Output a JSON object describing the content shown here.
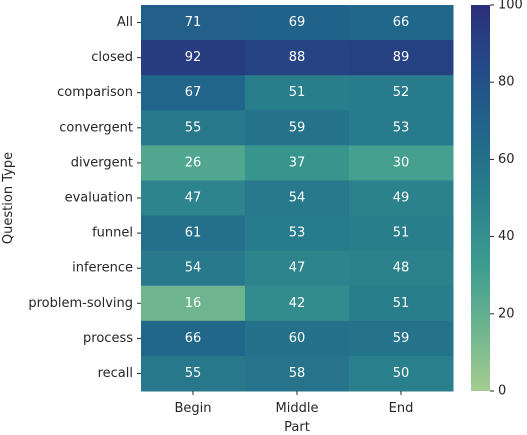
{
  "chart_data": {
    "type": "heatmap",
    "title": "",
    "xlabel": "Part",
    "ylabel": "Question Type",
    "x_categories": [
      "Begin",
      "Middle",
      "End"
    ],
    "y_categories": [
      "All",
      "closed",
      "comparison",
      "convergent",
      "divergent",
      "evaluation",
      "funnel",
      "inference",
      "problem-solving",
      "process",
      "recall"
    ],
    "values": [
      [
        71,
        69,
        66
      ],
      [
        92,
        88,
        89
      ],
      [
        67,
        51,
        52
      ],
      [
        55,
        59,
        53
      ],
      [
        26,
        37,
        30
      ],
      [
        47,
        54,
        49
      ],
      [
        61,
        53,
        51
      ],
      [
        54,
        47,
        48
      ],
      [
        16,
        42,
        51
      ],
      [
        66,
        60,
        59
      ],
      [
        55,
        58,
        50
      ]
    ],
    "colorbar": {
      "range": [
        0,
        100
      ],
      "ticks": [
        0,
        20,
        40,
        60,
        80,
        100
      ],
      "colormap": "crest",
      "stops": [
        "#a5cd90",
        "#6cb38f",
        "#3b9b8f",
        "#2a7f8c",
        "#21668a",
        "#234b87",
        "#2c2f79"
      ]
    },
    "annotation_color": "#ffffff",
    "grid": false,
    "legend": "colorbar-right"
  }
}
